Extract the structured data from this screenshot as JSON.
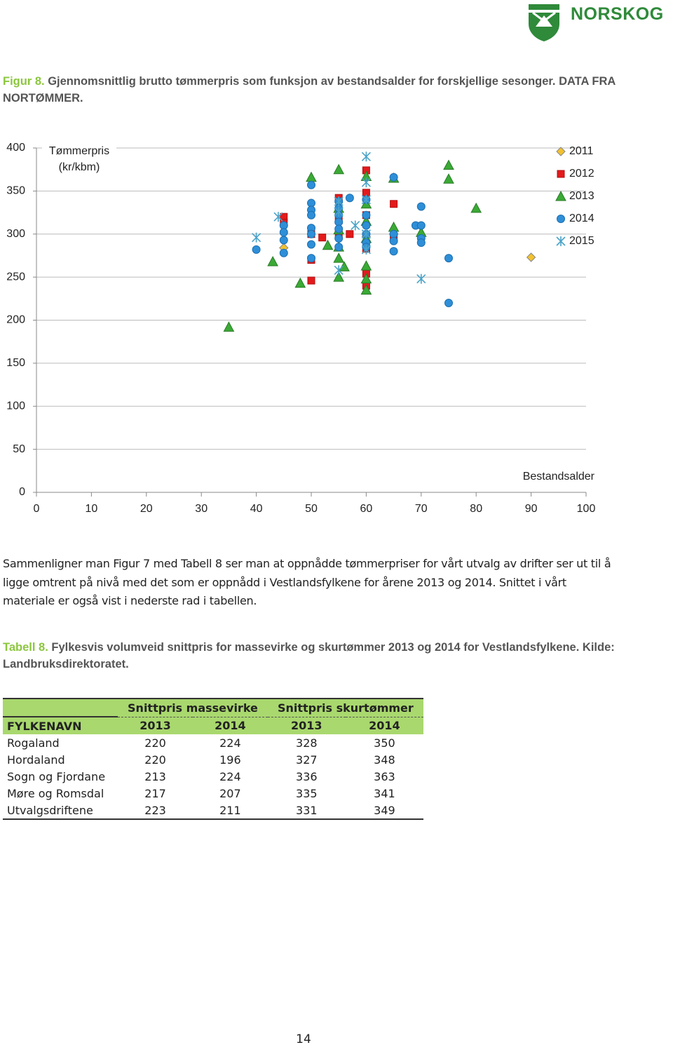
{
  "header": {
    "logo": "NORSKOG"
  },
  "figure_caption": {
    "label": "Figur 8.",
    "text": "Gjennomsnittlig brutto tømmerpris som funksjon av bestandsalder for forskjellige sesonger. DATA FRA NORTØMMER."
  },
  "chart_data": {
    "type": "scatter",
    "ylabel": "Tømmerpris (kr/kbm)",
    "xlabel": "Bestandsalder",
    "xlim": [
      0,
      100
    ],
    "xticks": [
      0,
      10,
      20,
      30,
      40,
      50,
      60,
      70,
      80,
      90,
      100
    ],
    "ylim": [
      0,
      400
    ],
    "yticks": [
      0,
      50,
      100,
      150,
      200,
      250,
      300,
      350,
      400
    ],
    "grid": true,
    "legend": "top-right",
    "series": [
      {
        "name": "2011",
        "color": "#f2c12e",
        "marker": "diamond",
        "x": [
          45,
          90,
          60,
          65
        ],
        "values": [
          284,
          273,
          297,
          300
        ]
      },
      {
        "name": "2012",
        "color": "#e31a1c",
        "marker": "square",
        "x": [
          45,
          45,
          50,
          50,
          50,
          52,
          55,
          55,
          55,
          57,
          60,
          60,
          60,
          60,
          60,
          60,
          65,
          65
        ],
        "values": [
          320,
          313,
          270,
          246,
          300,
          296,
          342,
          316,
          300,
          300,
          374,
          348,
          322,
          283,
          254,
          240,
          335,
          297
        ]
      },
      {
        "name": "2013",
        "color": "#3aaa35",
        "marker": "triangle",
        "x": [
          35,
          43,
          48,
          50,
          53,
          55,
          55,
          55,
          55,
          55,
          55,
          56,
          60,
          60,
          60,
          60,
          60,
          60,
          60,
          65,
          65,
          70,
          75,
          75,
          80
        ],
        "values": [
          192,
          268,
          243,
          366,
          287,
          375,
          330,
          305,
          285,
          272,
          250,
          262,
          367,
          335,
          315,
          295,
          263,
          248,
          235,
          365,
          308,
          302,
          380,
          364,
          330
        ]
      },
      {
        "name": "2014",
        "color": "#2e8fd8",
        "marker": "circle",
        "x": [
          40,
          45,
          45,
          45,
          45,
          50,
          50,
          50,
          50,
          50,
          50,
          50,
          50,
          55,
          55,
          55,
          55,
          55,
          55,
          55,
          57,
          60,
          60,
          60,
          60,
          60,
          60,
          65,
          65,
          65,
          65,
          69,
          70,
          70,
          70,
          70,
          75,
          75
        ],
        "values": [
          282,
          310,
          302,
          293,
          278,
          357,
          336,
          328,
          322,
          307,
          300,
          288,
          272,
          338,
          330,
          322,
          314,
          306,
          295,
          285,
          342,
          340,
          322,
          310,
          300,
          290,
          285,
          366,
          300,
          292,
          280,
          310,
          332,
          310,
          295,
          290,
          272,
          220
        ]
      },
      {
        "name": "2015",
        "color": "#4aa3c8",
        "marker": "asterisk",
        "x": [
          40,
          44,
          55,
          55,
          55,
          58,
          60,
          60,
          60,
          60,
          60,
          70
        ],
        "values": [
          296,
          320,
          338,
          326,
          258,
          310,
          390,
          360,
          340,
          300,
          282,
          248
        ]
      }
    ]
  },
  "paragraph": "Sammenligner man Figur 7 med Tabell 8 ser man at oppnådde tømmerpriser for vårt utvalg av drifter ser ut til å ligge omtrent på nivå med det som er oppnådd i Vestlandsfylkene for årene 2013 og 2014. Snittet i vårt materiale er også vist i nederste rad i tabellen.",
  "table_caption": {
    "label": "Tabell 8.",
    "text": "Fylkesvis volumveid snittpris for massevirke og skurtømmer 2013 og 2014 for Vestlandsfylkene. Kilde: Landbruksdirektoratet."
  },
  "table": {
    "group_headers": [
      "Snittpris massevirke",
      "Snittpris skurtømmer"
    ],
    "columns": [
      "FYLKENAVN",
      "2013",
      "2014",
      "2013",
      "2014"
    ],
    "rows": [
      [
        "Rogaland",
        220,
        224,
        328,
        350
      ],
      [
        "Hordaland",
        220,
        196,
        327,
        348
      ],
      [
        "Sogn og Fjordane",
        213,
        224,
        336,
        363
      ],
      [
        "Møre og Romsdal",
        217,
        207,
        335,
        341
      ],
      [
        "Utvalgsdriftene",
        223,
        211,
        331,
        349
      ]
    ]
  },
  "page_number": "14"
}
